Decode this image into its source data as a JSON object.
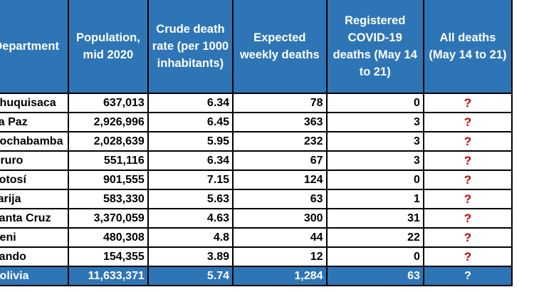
{
  "headers": {
    "department": "Department",
    "population": "Population, mid 2020",
    "crude_rate": "Crude death rate (per 1000 inhabitants)",
    "expected": "Expected weekly deaths",
    "registered": "Registered COVID-19 deaths (May 14 to 21)",
    "all_deaths": "All deaths (May 14 to 21)"
  },
  "rows": [
    {
      "department": "Chuquisaca",
      "population": "637,013",
      "rate": "6.34",
      "expected": "78",
      "covid": "0",
      "all": "?"
    },
    {
      "department": "La Paz",
      "population": "2,926,996",
      "rate": "6.45",
      "expected": "363",
      "covid": "3",
      "all": "?"
    },
    {
      "department": "Cochabamba",
      "population": "2,028,639",
      "rate": "5.95",
      "expected": "232",
      "covid": "3",
      "all": "?"
    },
    {
      "department": "Oruro",
      "population": "551,116",
      "rate": "6.34",
      "expected": "67",
      "covid": "3",
      "all": "?"
    },
    {
      "department": "Potosí",
      "population": "901,555",
      "rate": "7.15",
      "expected": "124",
      "covid": "0",
      "all": "?"
    },
    {
      "department": "Tarija",
      "population": "583,330",
      "rate": "5.63",
      "expected": "63",
      "covid": "1",
      "all": "?"
    },
    {
      "department": "Santa Cruz",
      "population": "3,370,059",
      "rate": "4.63",
      "expected": "300",
      "covid": "31",
      "all": "?"
    },
    {
      "department": "Beni",
      "population": "480,308",
      "rate": "4.8",
      "expected": "44",
      "covid": "22",
      "all": "?"
    },
    {
      "department": "Pando",
      "population": "154,355",
      "rate": "3.89",
      "expected": "12",
      "covid": "0",
      "all": "?"
    }
  ],
  "total": {
    "department": "Bolivia",
    "population": "11,633,371",
    "rate": "5.74",
    "expected": "1,284",
    "covid": "63",
    "all": "?"
  }
}
